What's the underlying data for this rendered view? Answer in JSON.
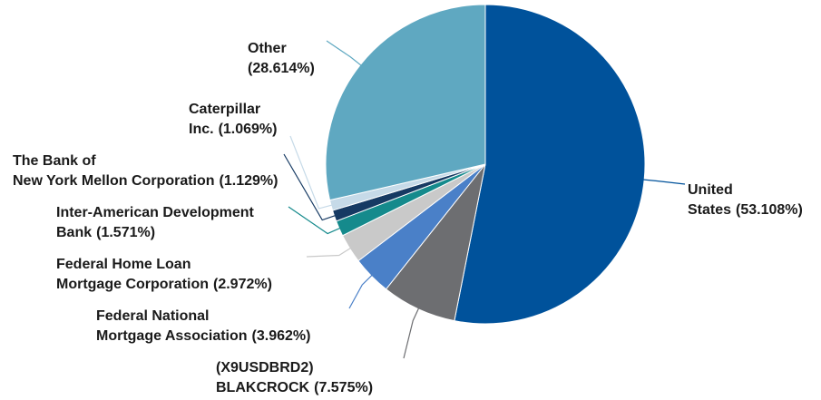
{
  "chart_data": {
    "type": "pie",
    "categories": [
      "United States",
      "(X9USDBRD2) BLAKCROCK",
      "Federal National Mortgage Association",
      "Federal Home Loan Mortgage Corporation",
      "Inter-American Development Bank",
      "The Bank of New York Mellon Corporation",
      "Caterpillar Inc.",
      "Other"
    ],
    "values": [
      53.108,
      7.575,
      3.962,
      2.972,
      1.571,
      1.129,
      1.069,
      28.614
    ],
    "value_labels": [
      "(53.108%)",
      "(7.575%)",
      "(3.962%)",
      "(2.972%)",
      "(1.571%)",
      "(1.129%)",
      "(1.069%)",
      "(28.614%)"
    ],
    "colors": [
      "#00529b",
      "#6d6e71",
      "#4a80c8",
      "#c9c9c9",
      "#158a8c",
      "#163a63",
      "#c6dae8",
      "#5fa8c1"
    ]
  }
}
